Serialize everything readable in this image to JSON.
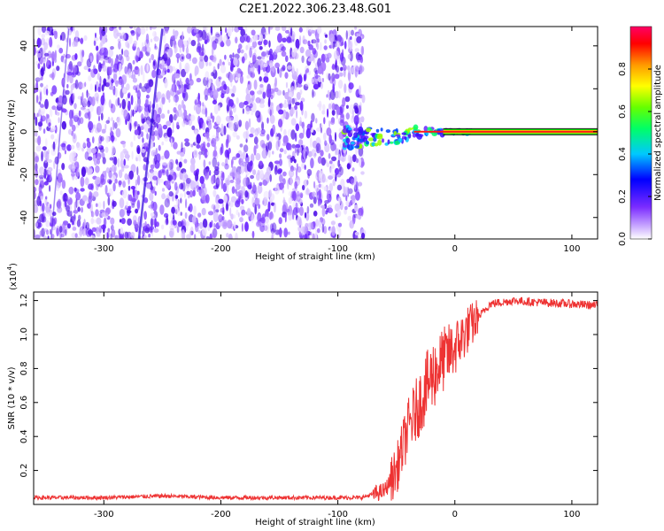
{
  "title": "C2E1.2022.306.23.48.G01",
  "chart_data": [
    {
      "type": "heatmap",
      "xlabel": "Height of straight line (km)",
      "ylabel": "Frequency (Hz)",
      "xlim": [
        -360,
        122
      ],
      "ylim": [
        -50,
        49
      ],
      "xticks": [
        -300,
        -200,
        -100,
        0,
        100
      ],
      "yticks": [
        -40,
        -20,
        0,
        20,
        40
      ],
      "colorbar": {
        "label": "Normalized spectral amplitude",
        "range": [
          0.0,
          1.0
        ],
        "ticks": [
          "0.0",
          "0.2",
          "0.4",
          "0.6",
          "0.8"
        ],
        "colors": [
          "#ffffff",
          "#7b2cff",
          "#0000ff",
          "#00e5ff",
          "#00ff00",
          "#ffff00",
          "#ff9900",
          "#ff0000",
          "#ff0066"
        ]
      },
      "noise_region_x": [
        -360,
        -78
      ],
      "signal_line": {
        "x_start": -95,
        "x_end": 122,
        "frequency_hz": 0
      }
    },
    {
      "type": "line",
      "xlabel": "Height of straight line (km)",
      "ylabel": "SNR (10 * v/v)",
      "y_multiplier_label": "(x10",
      "y_multiplier_exp": "4",
      "xlim": [
        -360,
        122
      ],
      "ylim": [
        0,
        1.25
      ],
      "xticks": [
        -300,
        -200,
        -100,
        0,
        100
      ],
      "yticks": [
        "0.2",
        "0.4",
        "0.6",
        "0.8",
        "1.0",
        "1.2"
      ],
      "line_color": "#ee3333",
      "series": [
        {
          "x": [
            -360,
            -300,
            -250,
            -200,
            -150,
            -100,
            -80,
            -60,
            -50,
            -40,
            -30,
            -20,
            -10,
            0,
            10,
            20,
            30,
            50,
            70,
            100,
            122
          ],
          "y": [
            0.04,
            0.04,
            0.05,
            0.04,
            0.04,
            0.04,
            0.04,
            0.08,
            0.2,
            0.45,
            0.6,
            0.75,
            0.85,
            0.92,
            1.02,
            1.1,
            1.18,
            1.2,
            1.19,
            1.18,
            1.17
          ]
        }
      ]
    }
  ]
}
